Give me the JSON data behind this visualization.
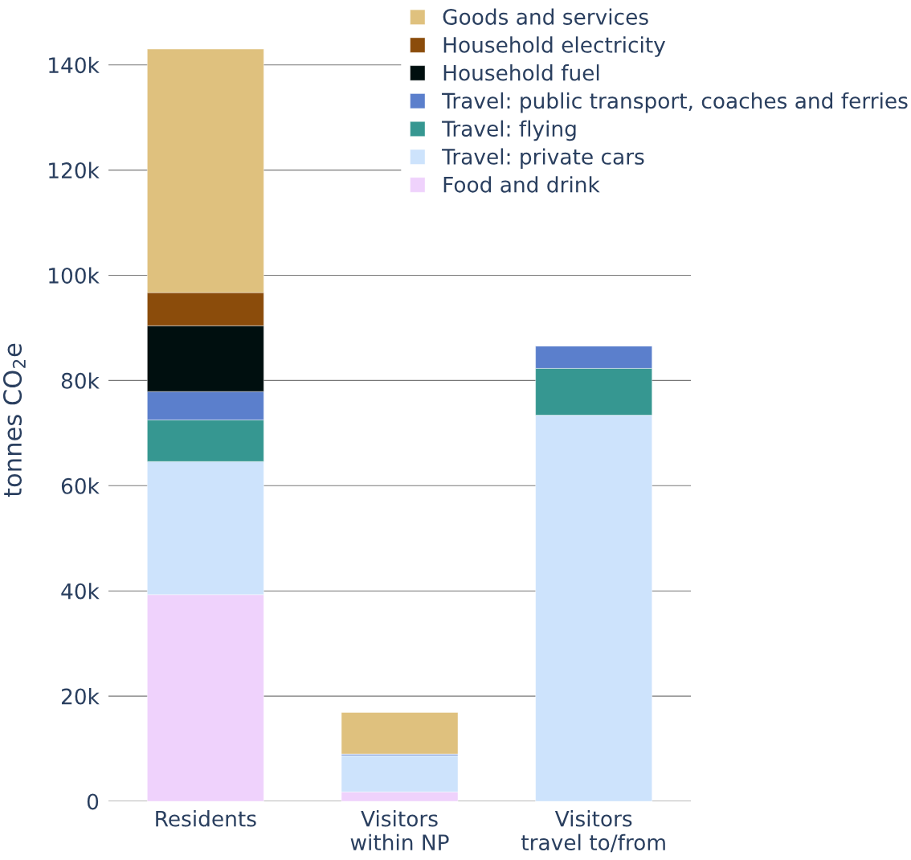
{
  "chart_data": {
    "type": "bar",
    "stacked": true,
    "ylabel": "tonnes CO$_{2}$e",
    "categories": [
      "Residents",
      "Visitors\nwithin NP",
      "Visitors\ntravel to/from"
    ],
    "series": [
      {
        "name": "Food and drink",
        "color": "#efd2fc",
        "values": [
          39300,
          1800,
          null
        ]
      },
      {
        "name": "Travel: private cars",
        "color": "#cde3fc",
        "values": [
          25300,
          6900,
          73400
        ]
      },
      {
        "name": "Travel: flying",
        "color": "#369791",
        "values": [
          7900,
          null,
          8900
        ]
      },
      {
        "name": "Travel: public transport, coaches and ferries",
        "color": "#5b7fcc",
        "values": [
          5400,
          300,
          4300
        ]
      },
      {
        "name": "Household fuel",
        "color": "#000f0f",
        "values": [
          12500,
          null,
          null
        ]
      },
      {
        "name": "Household electricity",
        "color": "#8b4c0b",
        "values": [
          6300,
          null,
          null
        ]
      },
      {
        "name": "Goods and services",
        "color": "#dfc17e",
        "values": [
          46300,
          7900,
          null
        ]
      }
    ],
    "ylim": [
      0,
      145000
    ],
    "yticks": [
      0,
      {
        "value": 20000,
        "label": "20k"
      },
      {
        "value": 40000,
        "label": "40k"
      },
      {
        "value": 60000,
        "label": "60k"
      },
      {
        "value": 80000,
        "label": "80k"
      },
      {
        "value": 100000,
        "label": "100k"
      },
      {
        "value": 120000,
        "label": "120k"
      },
      {
        "value": 140000,
        "label": "140k"
      }
    ],
    "grid": "y",
    "legend": "top right"
  }
}
